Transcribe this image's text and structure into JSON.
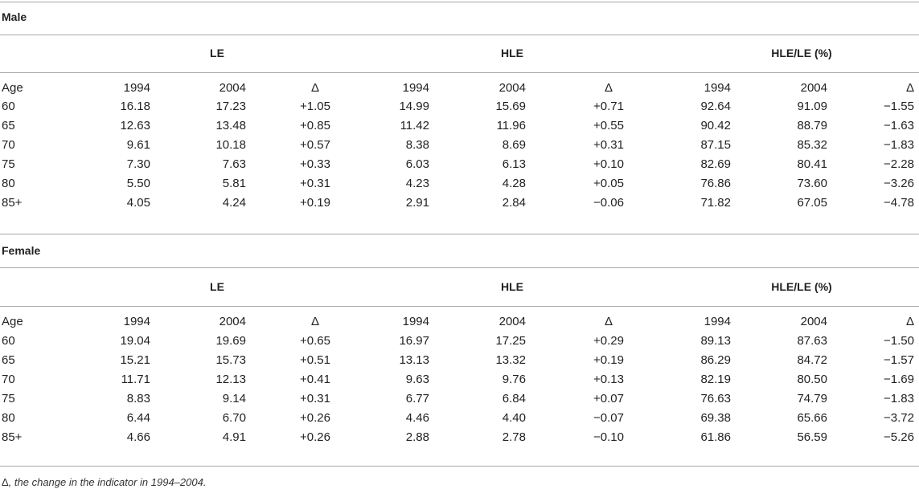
{
  "groups": [
    "LE",
    "HLE",
    "HLE/LE (%)"
  ],
  "header_row": [
    "Age",
    "1994",
    "2004",
    "Δ",
    "1994",
    "2004",
    "Δ",
    "1994",
    "2004",
    "Δ"
  ],
  "sections": [
    {
      "title": "Male",
      "rows": [
        [
          "60",
          "16.18",
          "17.23",
          "+1.05",
          "14.99",
          "15.69",
          "+0.71",
          "92.64",
          "91.09",
          "−1.55"
        ],
        [
          "65",
          "12.63",
          "13.48",
          "+0.85",
          "11.42",
          "11.96",
          "+0.55",
          "90.42",
          "88.79",
          "−1.63"
        ],
        [
          "70",
          "9.61",
          "10.18",
          "+0.57",
          "8.38",
          "8.69",
          "+0.31",
          "87.15",
          "85.32",
          "−1.83"
        ],
        [
          "75",
          "7.30",
          "7.63",
          "+0.33",
          "6.03",
          "6.13",
          "+0.10",
          "82.69",
          "80.41",
          "−2.28"
        ],
        [
          "80",
          "5.50",
          "5.81",
          "+0.31",
          "4.23",
          "4.28",
          "+0.05",
          "76.86",
          "73.60",
          "−3.26"
        ],
        [
          "85+",
          "4.05",
          "4.24",
          "+0.19",
          "2.91",
          "2.84",
          "−0.06",
          "71.82",
          "67.05",
          "−4.78"
        ]
      ]
    },
    {
      "title": "Female",
      "rows": [
        [
          "60",
          "19.04",
          "19.69",
          "+0.65",
          "16.97",
          "17.25",
          "+0.29",
          "89.13",
          "87.63",
          "−1.50"
        ],
        [
          "65",
          "15.21",
          "15.73",
          "+0.51",
          "13.13",
          "13.32",
          "+0.19",
          "86.29",
          "84.72",
          "−1.57"
        ],
        [
          "70",
          "11.71",
          "12.13",
          "+0.41",
          "9.63",
          "9.76",
          "+0.13",
          "82.19",
          "80.50",
          "−1.69"
        ],
        [
          "75",
          "8.83",
          "9.14",
          "+0.31",
          "6.77",
          "6.84",
          "+0.07",
          "76.63",
          "74.79",
          "−1.83"
        ],
        [
          "80",
          "6.44",
          "6.70",
          "+0.26",
          "4.46",
          "4.40",
          "−0.07",
          "69.38",
          "65.66",
          "−3.72"
        ],
        [
          "85+",
          "4.66",
          "4.91",
          "+0.26",
          "2.88",
          "2.78",
          "−0.10",
          "61.86",
          "56.59",
          "−5.26"
        ]
      ]
    }
  ],
  "footnote": {
    "symbol": "Δ",
    "text": ", the change in the indicator in 1994–2004."
  }
}
